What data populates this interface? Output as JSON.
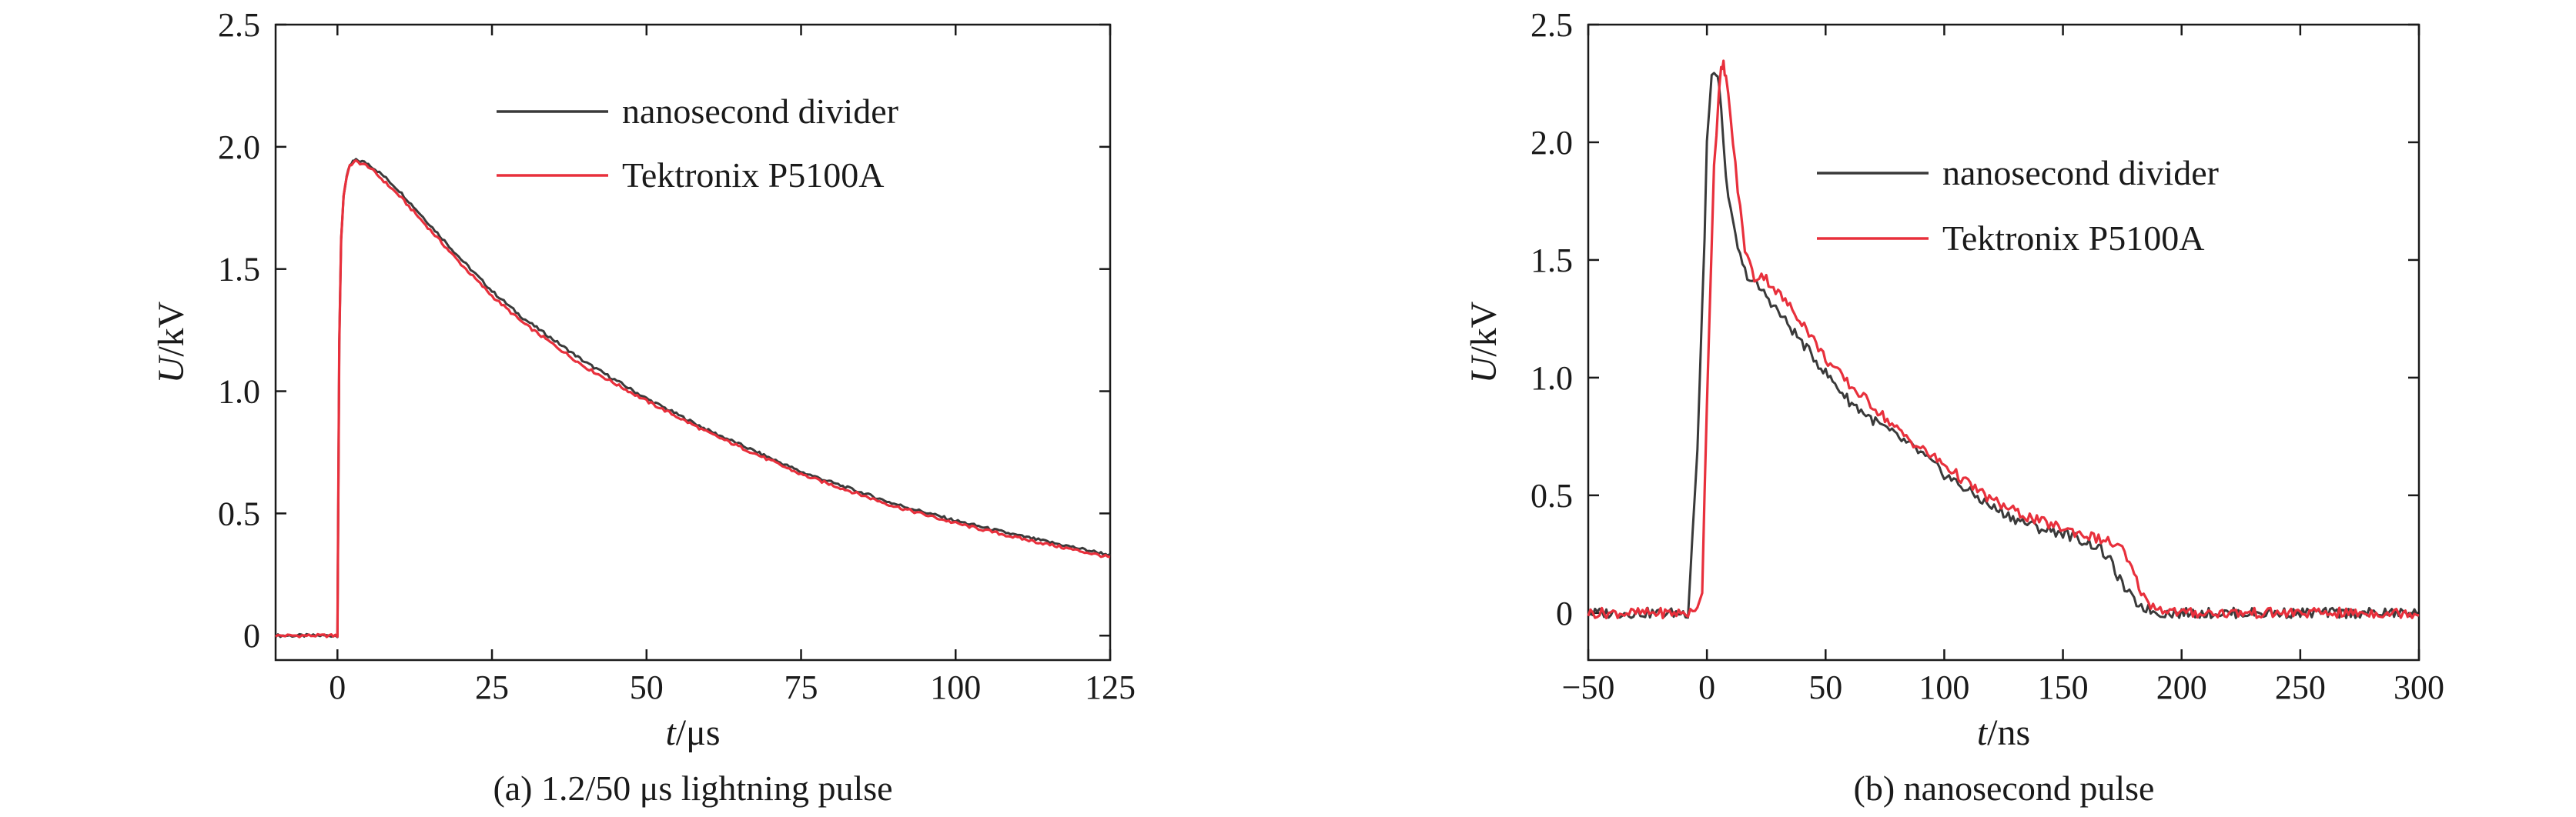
{
  "chart_data": [
    {
      "type": "line",
      "caption": "(a) 1.2/50 μs lightning pulse",
      "xlabel_var": "t",
      "xlabel_unit": "/μs",
      "ylabel_var": "U",
      "ylabel_unit": "/kV",
      "xlim": [
        -10,
        125
      ],
      "ylim": [
        -0.1,
        2.5
      ],
      "xticks": [
        0,
        25,
        50,
        75,
        100,
        125
      ],
      "xtick_labels": [
        "0",
        "25",
        "50",
        "75",
        "100",
        "125"
      ],
      "yticks": [
        0,
        0.5,
        1.0,
        1.5,
        2.0,
        2.5
      ],
      "ytick_labels": [
        "0",
        "0.5",
        "1.0",
        "1.5",
        "2.0",
        "2.5"
      ],
      "legend_position": "top-right",
      "grid": false,
      "series": [
        {
          "name": "nanosecond divider",
          "color": "#3a3a3a",
          "x": [
            -10,
            -5,
            -1,
            0,
            0.3,
            0.6,
            1,
            1.5,
            2,
            2.5,
            3,
            4,
            5,
            7.5,
            10,
            15,
            20,
            25,
            30,
            40,
            50,
            60,
            75,
            90,
            100,
            110,
            125
          ],
          "y": [
            0.0,
            0.0,
            0.0,
            0.0,
            1.2,
            1.62,
            1.8,
            1.88,
            1.92,
            1.94,
            1.945,
            1.94,
            1.93,
            1.88,
            1.82,
            1.68,
            1.54,
            1.41,
            1.3,
            1.12,
            0.97,
            0.84,
            0.67,
            0.54,
            0.47,
            0.41,
            0.33
          ]
        },
        {
          "name": "Tektronix P5100A",
          "color": "#e8303c",
          "x": [
            -10,
            -5,
            -1,
            0,
            0.3,
            0.6,
            1,
            1.5,
            2,
            2.5,
            3,
            4,
            5,
            7.5,
            10,
            15,
            20,
            25,
            30,
            40,
            50,
            60,
            75,
            90,
            100,
            110,
            125
          ],
          "y": [
            0.0,
            0.0,
            0.0,
            0.0,
            1.2,
            1.62,
            1.8,
            1.88,
            1.92,
            1.935,
            1.94,
            1.93,
            1.92,
            1.86,
            1.8,
            1.66,
            1.52,
            1.39,
            1.28,
            1.1,
            0.96,
            0.83,
            0.66,
            0.53,
            0.46,
            0.4,
            0.32
          ]
        }
      ]
    },
    {
      "type": "line",
      "caption": "(b) nanosecond pulse",
      "xlabel_var": "t",
      "xlabel_unit": "/ns",
      "ylabel_var": "U",
      "ylabel_unit": "/kV",
      "xlim": [
        -50,
        300
      ],
      "ylim": [
        -0.2,
        2.5
      ],
      "xticks": [
        -50,
        0,
        50,
        100,
        150,
        200,
        250,
        300
      ],
      "xtick_labels": [
        "−50",
        "0",
        "50",
        "100",
        "150",
        "200",
        "250",
        "300"
      ],
      "yticks": [
        0,
        0.5,
        1.0,
        1.5,
        2.0,
        2.5
      ],
      "ytick_labels": [
        "0",
        "0.5",
        "1.0",
        "1.5",
        "2.0",
        "2.5"
      ],
      "legend_position": "top-right",
      "grid": false,
      "series": [
        {
          "name": "nanosecond divider",
          "color": "#3a3a3a",
          "x": [
            -50,
            -30,
            -15,
            -8,
            -4,
            -1,
            0,
            2,
            4,
            5,
            7,
            9,
            12,
            15,
            18,
            20,
            25,
            30,
            40,
            50,
            60,
            70,
            80,
            90,
            100,
            110,
            120,
            130,
            140,
            150,
            160,
            165,
            170,
            175,
            180,
            185,
            190,
            200,
            220,
            250,
            280,
            300
          ],
          "y": [
            0.0,
            0.0,
            0.0,
            0.0,
            0.7,
            1.6,
            2.0,
            2.27,
            2.3,
            2.25,
            2.0,
            1.75,
            1.6,
            1.47,
            1.42,
            1.4,
            1.35,
            1.28,
            1.15,
            1.02,
            0.9,
            0.82,
            0.75,
            0.68,
            0.59,
            0.52,
            0.45,
            0.4,
            0.36,
            0.34,
            0.3,
            0.28,
            0.22,
            0.12,
            0.05,
            0.02,
            0.0,
            0.0,
            0.0,
            0.0,
            0.0,
            0.0
          ]
        },
        {
          "name": "Tektronix P5100A",
          "color": "#e8303c",
          "x": [
            -50,
            -30,
            -10,
            -5,
            -2,
            0,
            3,
            5,
            6,
            7,
            8,
            10,
            13,
            16,
            20,
            23,
            25,
            30,
            40,
            50,
            60,
            70,
            80,
            90,
            100,
            110,
            120,
            130,
            140,
            150,
            160,
            170,
            175,
            180,
            185,
            190,
            200,
            220,
            250,
            280,
            300
          ],
          "y": [
            0.0,
            0.0,
            0.0,
            0.0,
            0.1,
            0.9,
            1.9,
            2.2,
            2.3,
            2.33,
            2.28,
            2.1,
            1.8,
            1.55,
            1.42,
            1.44,
            1.42,
            1.36,
            1.24,
            1.08,
            0.97,
            0.88,
            0.78,
            0.7,
            0.63,
            0.55,
            0.48,
            0.43,
            0.39,
            0.36,
            0.33,
            0.3,
            0.27,
            0.16,
            0.05,
            0.02,
            0.0,
            0.0,
            0.0,
            0.0,
            0.0
          ]
        }
      ]
    }
  ]
}
